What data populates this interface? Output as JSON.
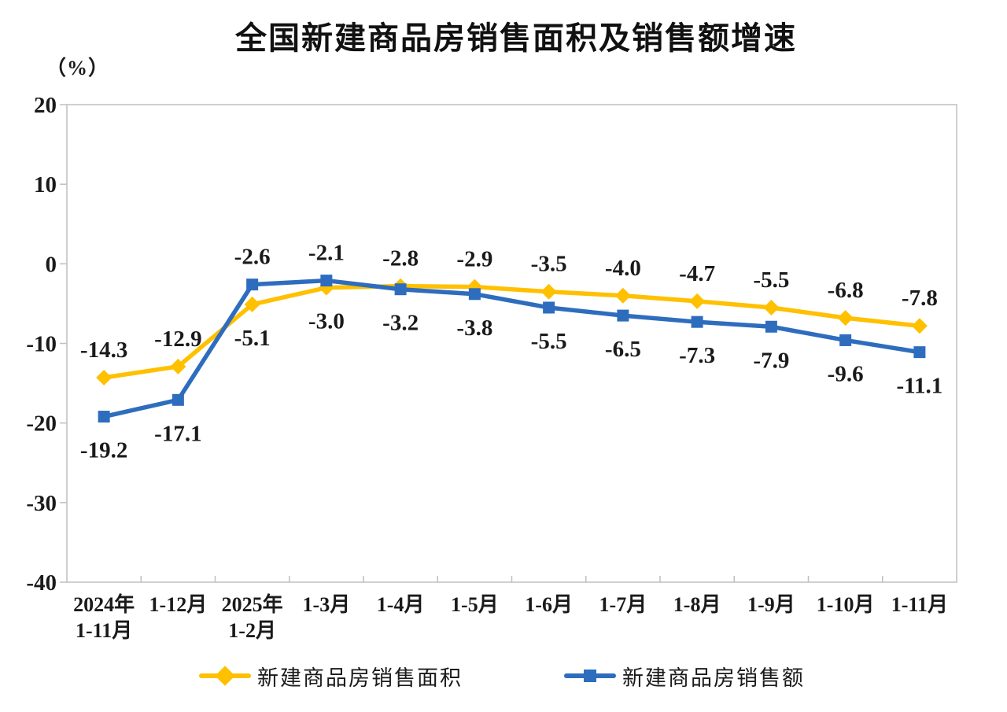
{
  "title": "全国新建商品房销售面积及销售额增速",
  "unit_label": "（%）",
  "colors": {
    "sales_area": "#FFC000",
    "sales_amount": "#2E6DBE",
    "text": "#1A1A1A",
    "frame": "#BFBFBF",
    "background": "#FFFFFF"
  },
  "chart_data": {
    "type": "line",
    "title": "全国新建商品房销售面积及销售额增速",
    "ylabel": "（%）",
    "ylim": [
      -40,
      20
    ],
    "yticks": [
      20,
      10,
      0,
      -10,
      -20,
      -30,
      -40
    ],
    "grid": false,
    "legend_position": "bottom",
    "data_labels": true,
    "categories": [
      "2024年\n1-11月",
      "1-12月",
      "2025年\n1-2月",
      "1-3月",
      "1-4月",
      "1-5月",
      "1-6月",
      "1-7月",
      "1-8月",
      "1-9月",
      "1-10月",
      "1-11月"
    ],
    "series": [
      {
        "name": "新建商品房销售面积",
        "marker": "diamond",
        "color": "#FFC000",
        "values": [
          -14.3,
          -12.9,
          -5.1,
          -3.0,
          -2.8,
          -2.9,
          -3.5,
          -4.0,
          -4.7,
          -5.5,
          -6.8,
          -7.8
        ]
      },
      {
        "name": "新建商品房销售额",
        "marker": "square",
        "color": "#2E6DBE",
        "values": [
          -19.2,
          -17.1,
          -2.6,
          -2.1,
          -3.2,
          -3.8,
          -5.5,
          -6.5,
          -7.3,
          -7.9,
          -9.6,
          -11.1
        ]
      }
    ]
  }
}
